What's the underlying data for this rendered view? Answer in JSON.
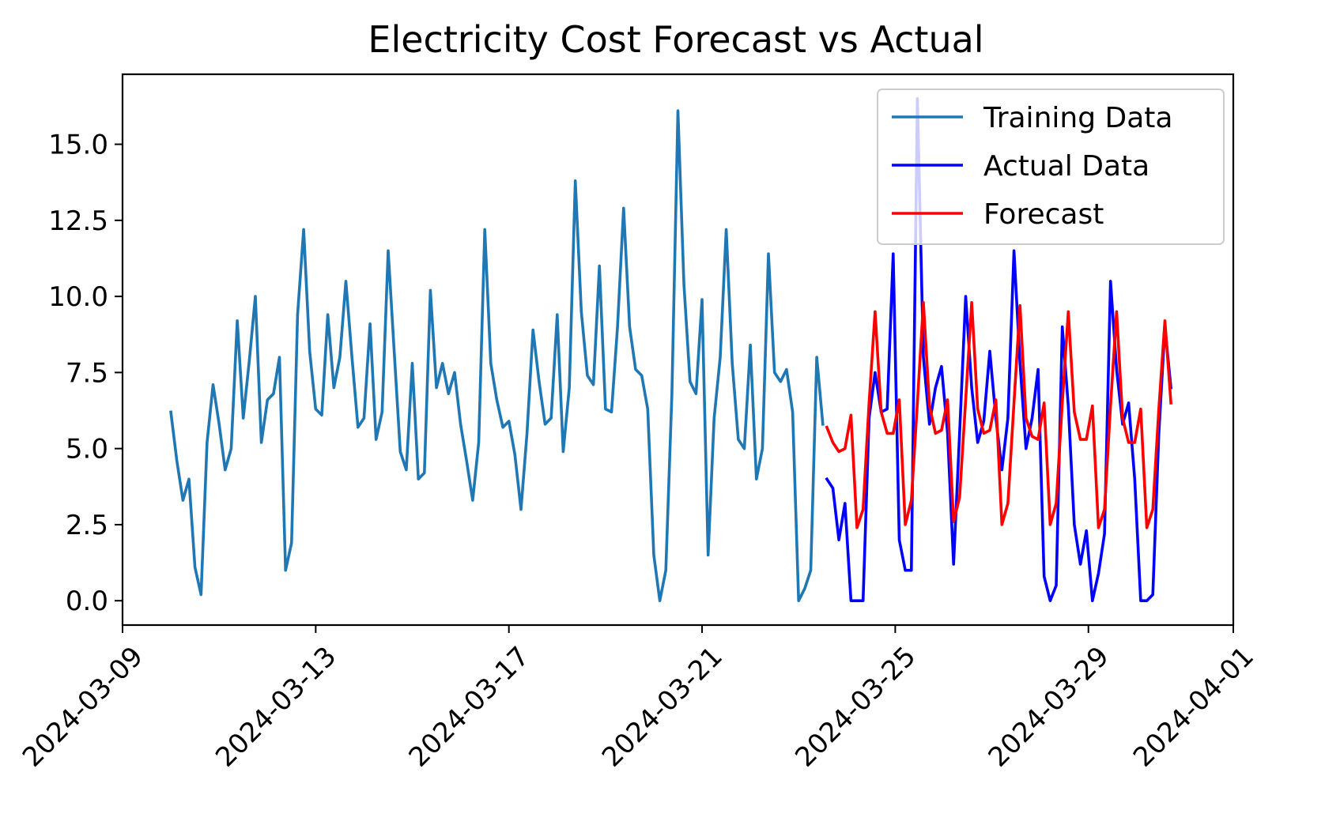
{
  "chart_data": {
    "type": "line",
    "title": "Electricity Cost Forecast vs Actual",
    "xlabel": "",
    "ylabel": "",
    "x_axis_type": "date",
    "xlim": [
      "2024-03-09",
      "2024-04-01"
    ],
    "ylim": [
      -0.8,
      17.3
    ],
    "x_ticks": [
      "2024-03-09",
      "2024-03-13",
      "2024-03-17",
      "2024-03-21",
      "2024-03-25",
      "2024-03-29",
      "2024-04-01"
    ],
    "y_ticks": [
      0.0,
      2.5,
      5.0,
      7.5,
      10.0,
      12.5,
      15.0
    ],
    "y_tick_labels": [
      "0.0",
      "2.5",
      "5.0",
      "7.5",
      "10.0",
      "12.5",
      "15.0"
    ],
    "grid": false,
    "legend_position": "upper right",
    "series": [
      {
        "name": "Training Data",
        "color": "#1f77b4",
        "points": [
          [
            "2024-03-10T00:00",
            6.2
          ],
          [
            "2024-03-10T03:00",
            4.6
          ],
          [
            "2024-03-10T06:00",
            3.3
          ],
          [
            "2024-03-10T09:00",
            4.0
          ],
          [
            "2024-03-10T12:00",
            1.1
          ],
          [
            "2024-03-10T15:00",
            0.2
          ],
          [
            "2024-03-10T18:00",
            5.2
          ],
          [
            "2024-03-10T21:00",
            7.1
          ],
          [
            "2024-03-11T00:00",
            5.8
          ],
          [
            "2024-03-11T03:00",
            4.3
          ],
          [
            "2024-03-11T06:00",
            5.0
          ],
          [
            "2024-03-11T09:00",
            9.2
          ],
          [
            "2024-03-11T12:00",
            6.0
          ],
          [
            "2024-03-11T15:00",
            7.9
          ],
          [
            "2024-03-11T18:00",
            10.0
          ],
          [
            "2024-03-11T21:00",
            5.2
          ],
          [
            "2024-03-12T00:00",
            6.6
          ],
          [
            "2024-03-12T03:00",
            6.8
          ],
          [
            "2024-03-12T06:00",
            8.0
          ],
          [
            "2024-03-12T09:00",
            1.0
          ],
          [
            "2024-03-12T12:00",
            1.9
          ],
          [
            "2024-03-12T15:00",
            9.4
          ],
          [
            "2024-03-12T18:00",
            12.2
          ],
          [
            "2024-03-12T21:00",
            8.2
          ],
          [
            "2024-03-13T00:00",
            6.3
          ],
          [
            "2024-03-13T03:00",
            6.1
          ],
          [
            "2024-03-13T06:00",
            9.4
          ],
          [
            "2024-03-13T09:00",
            7.0
          ],
          [
            "2024-03-13T12:00",
            8.0
          ],
          [
            "2024-03-13T15:00",
            10.5
          ],
          [
            "2024-03-13T18:00",
            8.0
          ],
          [
            "2024-03-13T21:00",
            5.7
          ],
          [
            "2024-03-14T00:00",
            6.0
          ],
          [
            "2024-03-14T03:00",
            9.1
          ],
          [
            "2024-03-14T06:00",
            5.3
          ],
          [
            "2024-03-14T09:00",
            6.2
          ],
          [
            "2024-03-14T12:00",
            11.5
          ],
          [
            "2024-03-14T15:00",
            8.2
          ],
          [
            "2024-03-14T18:00",
            4.9
          ],
          [
            "2024-03-14T21:00",
            4.3
          ],
          [
            "2024-03-15T00:00",
            7.8
          ],
          [
            "2024-03-15T03:00",
            4.0
          ],
          [
            "2024-03-15T06:00",
            4.2
          ],
          [
            "2024-03-15T09:00",
            10.2
          ],
          [
            "2024-03-15T12:00",
            7.0
          ],
          [
            "2024-03-15T15:00",
            7.8
          ],
          [
            "2024-03-15T18:00",
            6.8
          ],
          [
            "2024-03-15T21:00",
            7.5
          ],
          [
            "2024-03-16T00:00",
            5.8
          ],
          [
            "2024-03-16T03:00",
            4.6
          ],
          [
            "2024-03-16T06:00",
            3.3
          ],
          [
            "2024-03-16T09:00",
            5.2
          ],
          [
            "2024-03-16T12:00",
            12.2
          ],
          [
            "2024-03-16T15:00",
            7.8
          ],
          [
            "2024-03-16T18:00",
            6.6
          ],
          [
            "2024-03-16T21:00",
            5.7
          ],
          [
            "2024-03-17T00:00",
            5.9
          ],
          [
            "2024-03-17T03:00",
            4.8
          ],
          [
            "2024-03-17T06:00",
            3.0
          ],
          [
            "2024-03-17T09:00",
            5.5
          ],
          [
            "2024-03-17T12:00",
            8.9
          ],
          [
            "2024-03-17T15:00",
            7.2
          ],
          [
            "2024-03-17T18:00",
            5.8
          ],
          [
            "2024-03-17T21:00",
            6.0
          ],
          [
            "2024-03-18T00:00",
            9.4
          ],
          [
            "2024-03-18T03:00",
            4.9
          ],
          [
            "2024-03-18T06:00",
            7.0
          ],
          [
            "2024-03-18T09:00",
            13.8
          ],
          [
            "2024-03-18T12:00",
            9.5
          ],
          [
            "2024-03-18T15:00",
            7.4
          ],
          [
            "2024-03-18T18:00",
            7.1
          ],
          [
            "2024-03-18T21:00",
            11.0
          ],
          [
            "2024-03-19T00:00",
            6.3
          ],
          [
            "2024-03-19T03:00",
            6.2
          ],
          [
            "2024-03-19T06:00",
            9.0
          ],
          [
            "2024-03-19T09:00",
            12.9
          ],
          [
            "2024-03-19T12:00",
            9.0
          ],
          [
            "2024-03-19T15:00",
            7.6
          ],
          [
            "2024-03-19T18:00",
            7.4
          ],
          [
            "2024-03-19T21:00",
            6.3
          ],
          [
            "2024-03-20T00:00",
            1.5
          ],
          [
            "2024-03-20T03:00",
            0.0
          ],
          [
            "2024-03-20T06:00",
            1.0
          ],
          [
            "2024-03-20T09:00",
            6.8
          ],
          [
            "2024-03-20T12:00",
            16.1
          ],
          [
            "2024-03-20T15:00",
            10.4
          ],
          [
            "2024-03-20T18:00",
            7.2
          ],
          [
            "2024-03-20T21:00",
            6.8
          ],
          [
            "2024-03-21T00:00",
            9.9
          ],
          [
            "2024-03-21T03:00",
            1.5
          ],
          [
            "2024-03-21T06:00",
            6.0
          ],
          [
            "2024-03-21T09:00",
            8.0
          ],
          [
            "2024-03-21T12:00",
            12.2
          ],
          [
            "2024-03-21T15:00",
            7.8
          ],
          [
            "2024-03-21T18:00",
            5.3
          ],
          [
            "2024-03-21T21:00",
            5.0
          ],
          [
            "2024-03-22T00:00",
            8.4
          ],
          [
            "2024-03-22T03:00",
            4.0
          ],
          [
            "2024-03-22T06:00",
            5.0
          ],
          [
            "2024-03-22T09:00",
            11.4
          ],
          [
            "2024-03-22T12:00",
            7.5
          ],
          [
            "2024-03-22T15:00",
            7.2
          ],
          [
            "2024-03-22T18:00",
            7.6
          ],
          [
            "2024-03-22T21:00",
            6.2
          ],
          [
            "2024-03-23T00:00",
            0.0
          ],
          [
            "2024-03-23T03:00",
            0.4
          ],
          [
            "2024-03-23T06:00",
            1.0
          ],
          [
            "2024-03-23T09:00",
            8.0
          ],
          [
            "2024-03-23T12:00",
            5.8
          ]
        ]
      },
      {
        "name": "Actual Data",
        "color": "#0000ff",
        "points": [
          [
            "2024-03-23T14:00",
            4.0
          ],
          [
            "2024-03-23T17:00",
            3.7
          ],
          [
            "2024-03-23T20:00",
            2.0
          ],
          [
            "2024-03-23T23:00",
            3.2
          ],
          [
            "2024-03-24T02:00",
            0.0
          ],
          [
            "2024-03-24T05:00",
            0.0
          ],
          [
            "2024-03-24T08:00",
            0.0
          ],
          [
            "2024-03-24T11:00",
            6.0
          ],
          [
            "2024-03-24T14:00",
            7.5
          ],
          [
            "2024-03-24T17:00",
            6.2
          ],
          [
            "2024-03-24T20:00",
            6.3
          ],
          [
            "2024-03-24T23:00",
            11.4
          ],
          [
            "2024-03-25T02:00",
            2.0
          ],
          [
            "2024-03-25T05:00",
            1.0
          ],
          [
            "2024-03-25T08:00",
            1.0
          ],
          [
            "2024-03-25T11:00",
            16.5
          ],
          [
            "2024-03-25T14:00",
            8.0
          ],
          [
            "2024-03-25T17:00",
            5.8
          ],
          [
            "2024-03-25T20:00",
            7.0
          ],
          [
            "2024-03-25T23:00",
            7.7
          ],
          [
            "2024-03-26T02:00",
            5.5
          ],
          [
            "2024-03-26T05:00",
            1.2
          ],
          [
            "2024-03-26T08:00",
            5.5
          ],
          [
            "2024-03-26T11:00",
            10.0
          ],
          [
            "2024-03-26T14:00",
            7.0
          ],
          [
            "2024-03-26T17:00",
            5.2
          ],
          [
            "2024-03-26T20:00",
            5.9
          ],
          [
            "2024-03-26T23:00",
            8.2
          ],
          [
            "2024-03-27T02:00",
            6.0
          ],
          [
            "2024-03-27T05:00",
            4.3
          ],
          [
            "2024-03-27T08:00",
            6.0
          ],
          [
            "2024-03-27T11:00",
            11.5
          ],
          [
            "2024-03-27T14:00",
            7.8
          ],
          [
            "2024-03-27T17:00",
            5.0
          ],
          [
            "2024-03-27T20:00",
            6.0
          ],
          [
            "2024-03-27T23:00",
            7.6
          ],
          [
            "2024-03-28T02:00",
            0.8
          ],
          [
            "2024-03-28T05:00",
            0.0
          ],
          [
            "2024-03-28T08:00",
            0.5
          ],
          [
            "2024-03-28T11:00",
            9.0
          ],
          [
            "2024-03-28T14:00",
            6.4
          ],
          [
            "2024-03-28T17:00",
            2.5
          ],
          [
            "2024-03-28T20:00",
            1.2
          ],
          [
            "2024-03-28T23:00",
            2.3
          ],
          [
            "2024-03-29T02:00",
            0.0
          ],
          [
            "2024-03-29T05:00",
            0.9
          ],
          [
            "2024-03-29T08:00",
            2.2
          ],
          [
            "2024-03-29T11:00",
            10.5
          ],
          [
            "2024-03-29T14:00",
            7.6
          ],
          [
            "2024-03-29T17:00",
            5.8
          ],
          [
            "2024-03-29T20:00",
            6.5
          ],
          [
            "2024-03-29T23:00",
            4.0
          ],
          [
            "2024-03-30T02:00",
            0.0
          ],
          [
            "2024-03-30T05:00",
            0.0
          ],
          [
            "2024-03-30T08:00",
            0.2
          ],
          [
            "2024-03-30T11:00",
            5.5
          ],
          [
            "2024-03-30T14:00",
            9.0
          ],
          [
            "2024-03-30T17:00",
            7.0
          ]
        ]
      },
      {
        "name": "Forecast",
        "color": "#ff0000",
        "points": [
          [
            "2024-03-23T14:00",
            5.7
          ],
          [
            "2024-03-23T17:00",
            5.2
          ],
          [
            "2024-03-23T20:00",
            4.9
          ],
          [
            "2024-03-23T23:00",
            5.0
          ],
          [
            "2024-03-24T02:00",
            6.1
          ],
          [
            "2024-03-24T05:00",
            2.4
          ],
          [
            "2024-03-24T08:00",
            3.0
          ],
          [
            "2024-03-24T11:00",
            6.5
          ],
          [
            "2024-03-24T14:00",
            9.5
          ],
          [
            "2024-03-24T17:00",
            6.2
          ],
          [
            "2024-03-24T20:00",
            5.5
          ],
          [
            "2024-03-24T23:00",
            5.5
          ],
          [
            "2024-03-25T02:00",
            6.6
          ],
          [
            "2024-03-25T05:00",
            2.5
          ],
          [
            "2024-03-25T08:00",
            3.3
          ],
          [
            "2024-03-25T11:00",
            6.5
          ],
          [
            "2024-03-25T14:00",
            9.8
          ],
          [
            "2024-03-25T17:00",
            6.4
          ],
          [
            "2024-03-25T20:00",
            5.5
          ],
          [
            "2024-03-25T23:00",
            5.6
          ],
          [
            "2024-03-26T02:00",
            6.6
          ],
          [
            "2024-03-26T05:00",
            2.6
          ],
          [
            "2024-03-26T08:00",
            3.4
          ],
          [
            "2024-03-26T11:00",
            6.6
          ],
          [
            "2024-03-26T14:00",
            9.8
          ],
          [
            "2024-03-26T17:00",
            6.3
          ],
          [
            "2024-03-26T20:00",
            5.5
          ],
          [
            "2024-03-26T23:00",
            5.6
          ],
          [
            "2024-03-27T02:00",
            6.6
          ],
          [
            "2024-03-27T05:00",
            2.5
          ],
          [
            "2024-03-27T08:00",
            3.2
          ],
          [
            "2024-03-27T11:00",
            6.5
          ],
          [
            "2024-03-27T14:00",
            9.7
          ],
          [
            "2024-03-27T17:00",
            6.0
          ],
          [
            "2024-03-27T20:00",
            5.4
          ],
          [
            "2024-03-27T23:00",
            5.3
          ],
          [
            "2024-03-28T02:00",
            6.5
          ],
          [
            "2024-03-28T05:00",
            2.5
          ],
          [
            "2024-03-28T08:00",
            3.2
          ],
          [
            "2024-03-28T11:00",
            6.5
          ],
          [
            "2024-03-28T14:00",
            9.5
          ],
          [
            "2024-03-28T17:00",
            6.2
          ],
          [
            "2024-03-28T20:00",
            5.3
          ],
          [
            "2024-03-28T23:00",
            5.3
          ],
          [
            "2024-03-29T02:00",
            6.4
          ],
          [
            "2024-03-29T05:00",
            2.4
          ],
          [
            "2024-03-29T08:00",
            3.0
          ],
          [
            "2024-03-29T11:00",
            6.4
          ],
          [
            "2024-03-29T14:00",
            9.5
          ],
          [
            "2024-03-29T17:00",
            6.0
          ],
          [
            "2024-03-29T20:00",
            5.2
          ],
          [
            "2024-03-29T23:00",
            5.2
          ],
          [
            "2024-03-30T02:00",
            6.3
          ],
          [
            "2024-03-30T05:00",
            2.4
          ],
          [
            "2024-03-30T08:00",
            3.0
          ],
          [
            "2024-03-30T11:00",
            6.3
          ],
          [
            "2024-03-30T14:00",
            9.2
          ],
          [
            "2024-03-30T17:00",
            6.5
          ]
        ]
      }
    ]
  }
}
